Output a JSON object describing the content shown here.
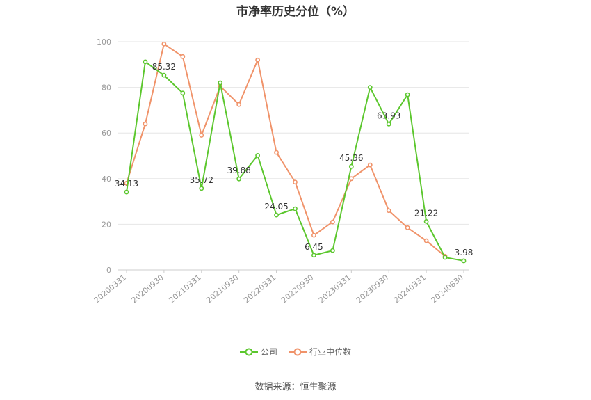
{
  "title": "市净率历史分位（%）",
  "source": "数据来源：恒生聚源",
  "chart_data": {
    "type": "line",
    "title": "市净率历史分位（%）",
    "ylim": [
      0,
      100
    ],
    "yticks": [
      0,
      20,
      40,
      60,
      80,
      100
    ],
    "xtick_labels": [
      "20200331",
      "20200930",
      "20210331",
      "20210930",
      "20220331",
      "20220930",
      "20230331",
      "20230930",
      "20240331",
      "20240830"
    ],
    "x": [
      "20200331",
      "20200630",
      "20200930",
      "20201231",
      "20210331",
      "20210630",
      "20210930",
      "20211231",
      "20220331",
      "20220630",
      "20220930",
      "20221231",
      "20230331",
      "20230630",
      "20230930",
      "20231231",
      "20240331",
      "20240630",
      "20240830"
    ],
    "grid": true,
    "legend_position": "bottom",
    "series": [
      {
        "name": "公司",
        "color": "#5cc72e",
        "values": [
          34.13,
          91.2,
          85.32,
          77.5,
          35.72,
          82.0,
          39.88,
          50.2,
          24.05,
          26.8,
          6.45,
          8.5,
          45.36,
          80.0,
          63.93,
          76.8,
          21.22,
          5.5,
          3.98
        ],
        "labels": {
          "0": "34.13",
          "2": "85.32",
          "4": "35.72",
          "6": "39.88",
          "8": "24.05",
          "10": "6.45",
          "12": "45.36",
          "14": "63.93",
          "16": "21.22",
          "18": "3.98"
        }
      },
      {
        "name": "行业中位数",
        "color": "#f0936a",
        "values": [
          38.0,
          64.0,
          99.0,
          93.5,
          59.0,
          80.5,
          72.5,
          92.0,
          51.5,
          38.5,
          15.2,
          21.0,
          40.0,
          46.0,
          26.0,
          18.5,
          12.8,
          6.0,
          null
        ]
      }
    ]
  }
}
